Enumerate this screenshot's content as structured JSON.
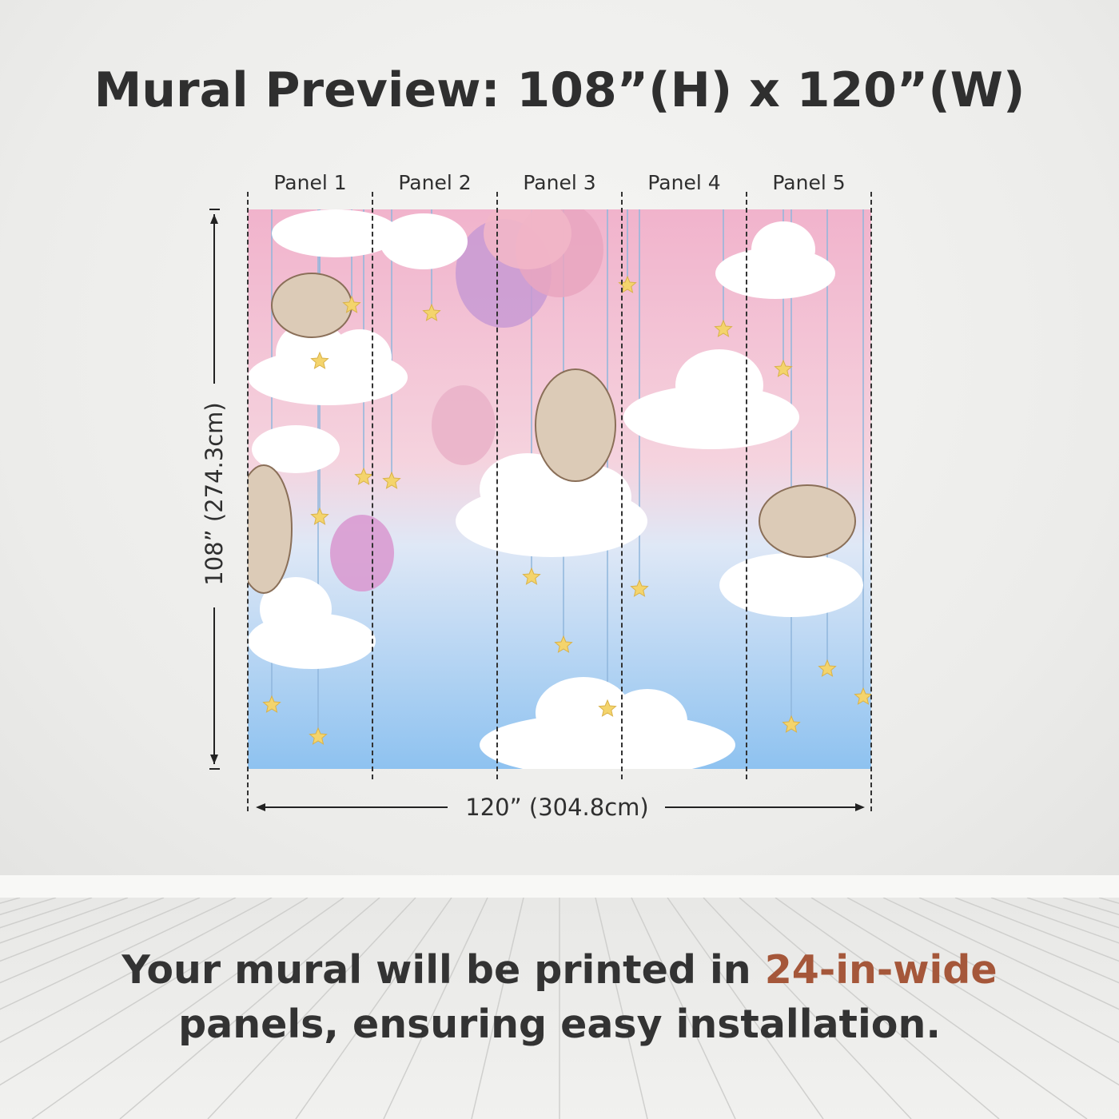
{
  "title": "Mural Preview: 108”(H) x 120”(W)",
  "panels": [
    {
      "label": "Panel 1"
    },
    {
      "label": "Panel 2"
    },
    {
      "label": "Panel 3"
    },
    {
      "label": "Panel 4"
    },
    {
      "label": "Panel 5"
    }
  ],
  "dimensions": {
    "height_label": "108” (274.3cm)",
    "width_label": "120” (304.8cm)"
  },
  "footer": {
    "text_before": "Your mural will be printed in ",
    "highlight": "24-in-wide",
    "text_after": "panels, ensuring easy installation."
  },
  "colors": {
    "accent": "#a5573a",
    "text": "#2f2f2f",
    "sky_top": "#f1b8cf",
    "sky_bottom": "#8ec2f0"
  },
  "mural_image": "bunnies-clouds-balloons-stars"
}
